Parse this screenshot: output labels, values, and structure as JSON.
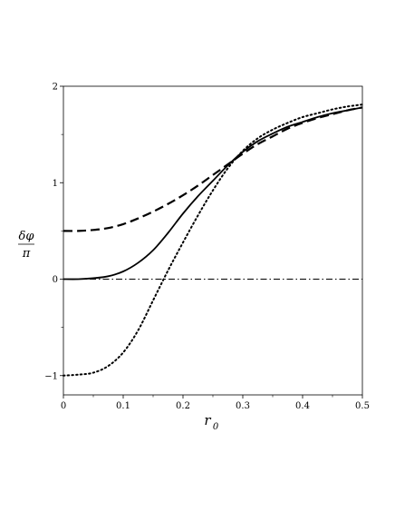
{
  "chart_data": {
    "type": "line",
    "xlabel": "r",
    "xlabel_subscript": "0",
    "ylabel_numerator": "δφ",
    "ylabel_denominator": "π",
    "xlim": [
      0,
      0.5
    ],
    "ylim": [
      -1.2,
      2.0
    ],
    "x_ticks": [
      {
        "value": 0,
        "label": "0"
      },
      {
        "value": 0.1,
        "label": "0.1"
      },
      {
        "value": 0.2,
        "label": "0.2"
      },
      {
        "value": 0.3,
        "label": "0.3"
      },
      {
        "value": 0.4,
        "label": "0.4"
      },
      {
        "value": 0.5,
        "label": "0.5"
      }
    ],
    "y_ticks": [
      {
        "value": -1,
        "label": "−1"
      },
      {
        "value": 0,
        "label": "0"
      },
      {
        "value": 1,
        "label": "1"
      },
      {
        "value": 2,
        "label": "2"
      }
    ],
    "grid": false,
    "legend": "none",
    "series": [
      {
        "style": "dashed",
        "x": [
          0,
          0.025,
          0.05,
          0.075,
          0.1,
          0.125,
          0.15,
          0.175,
          0.2,
          0.225,
          0.25,
          0.275,
          0.3,
          0.325,
          0.35,
          0.375,
          0.4,
          0.425,
          0.45,
          0.475,
          0.5
        ],
        "y": [
          0.5,
          0.5,
          0.51,
          0.53,
          0.57,
          0.63,
          0.7,
          0.78,
          0.87,
          0.97,
          1.08,
          1.19,
          1.3,
          1.4,
          1.48,
          1.56,
          1.62,
          1.67,
          1.71,
          1.75,
          1.78
        ]
      },
      {
        "style": "solid",
        "x": [
          0,
          0.025,
          0.05,
          0.075,
          0.1,
          0.125,
          0.15,
          0.175,
          0.2,
          0.225,
          0.25,
          0.275,
          0.3,
          0.325,
          0.35,
          0.375,
          0.4,
          0.425,
          0.45,
          0.475,
          0.5
        ],
        "y": [
          0,
          0,
          0.01,
          0.03,
          0.08,
          0.17,
          0.3,
          0.48,
          0.68,
          0.86,
          1.02,
          1.18,
          1.32,
          1.43,
          1.51,
          1.58,
          1.63,
          1.68,
          1.72,
          1.75,
          1.78
        ]
      },
      {
        "style": "dotted",
        "x": [
          0,
          0.025,
          0.05,
          0.075,
          0.1,
          0.125,
          0.15,
          0.175,
          0.2,
          0.225,
          0.25,
          0.275,
          0.3,
          0.325,
          0.35,
          0.375,
          0.4,
          0.425,
          0.45,
          0.475,
          0.5
        ],
        "y": [
          -1,
          -0.99,
          -0.97,
          -0.9,
          -0.76,
          -0.53,
          -0.22,
          0.09,
          0.38,
          0.66,
          0.92,
          1.15,
          1.33,
          1.46,
          1.55,
          1.62,
          1.68,
          1.72,
          1.76,
          1.79,
          1.81
        ]
      },
      {
        "style": "dashdot",
        "x": [
          0,
          0.5
        ],
        "y": [
          0,
          0
        ]
      }
    ]
  }
}
